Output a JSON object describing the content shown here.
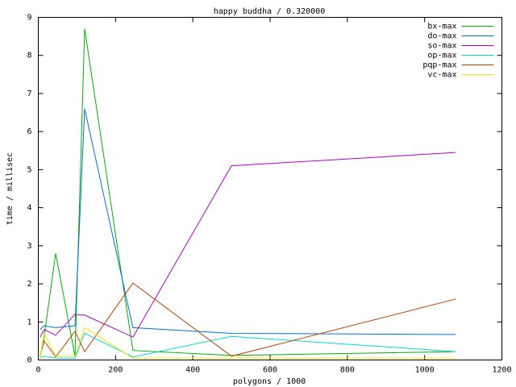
{
  "chart_data": {
    "type": "line",
    "title": "happy buddha / 0.320000",
    "x_label": "polygons / 1000",
    "y_label": "time / millisec",
    "x": [
      5,
      15,
      45,
      95,
      120,
      245,
      500,
      1080
    ],
    "series": [
      {
        "name": "bx-max",
        "color": "#00b000",
        "values": [
          0.1,
          0.6,
          2.8,
          0.1,
          8.7,
          0.25,
          0.12,
          0.22
        ]
      },
      {
        "name": "do-max",
        "color": "#0070e0",
        "values": [
          0.8,
          0.9,
          0.85,
          0.9,
          6.6,
          0.85,
          0.7,
          0.67
        ]
      },
      {
        "name": "so-max",
        "color": "#b000d0",
        "values": [
          0.6,
          0.8,
          0.65,
          1.2,
          1.18,
          0.6,
          5.1,
          5.45
        ]
      },
      {
        "name": "op-max",
        "color": "#00d8d8",
        "values": [
          0.05,
          0.1,
          0.05,
          0.05,
          0.7,
          0.08,
          0.62,
          0.22
        ]
      },
      {
        "name": "pqp-max",
        "color": "#c04000",
        "values": [
          0.1,
          0.5,
          0.08,
          0.75,
          0.22,
          2.02,
          0.1,
          1.6
        ]
      },
      {
        "name": "vc-max",
        "color": "#e8e800",
        "values": [
          0.05,
          0.7,
          0.1,
          0.1,
          0.85,
          0.05,
          0.05,
          0.05
        ]
      }
    ],
    "xlim": [
      0,
      1200
    ],
    "xticks": [
      0,
      200,
      400,
      600,
      800,
      1000,
      1200
    ],
    "ylim": [
      0,
      9
    ],
    "yticks": [
      0,
      1,
      2,
      3,
      4,
      5,
      6,
      7,
      8,
      9
    ],
    "grid": false,
    "legend": "top-right"
  }
}
